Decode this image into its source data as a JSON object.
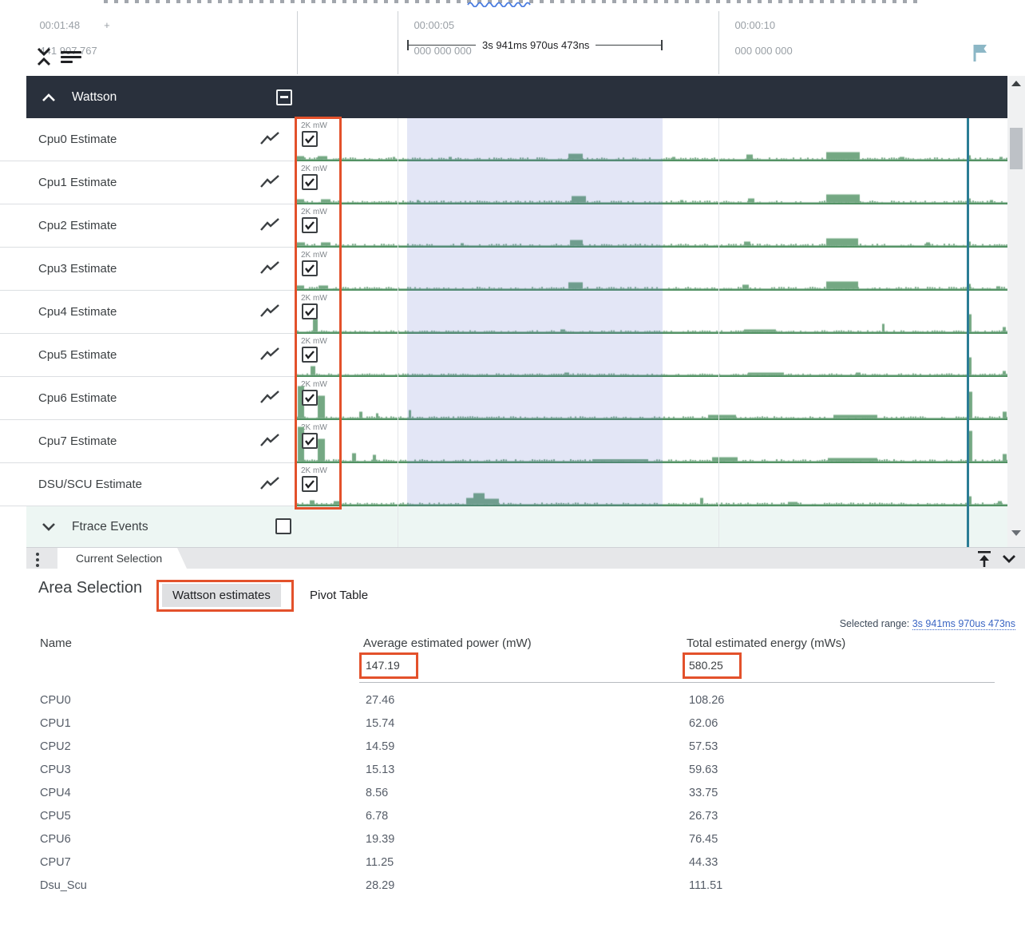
{
  "colors": {
    "annotation_orange": "#e3512b",
    "group_header_dark": "#29303c",
    "wave_fill": "#74a883",
    "wave_line": "#4e8f60",
    "selection_overlay": "#5a69c8",
    "time_marker_teal": "#2b7d95",
    "ftrace_row_bg": "#edf6f3",
    "link_blue": "#3b66c4",
    "squiggle_blue": "#4a7ce0",
    "flag_teal": "#8cb7c6"
  },
  "ruler": {
    "left_time": "00:01:48",
    "left_plus": "+",
    "left_offset": "441 907 767",
    "tick1_time": "00:00:05",
    "tick1_sub": "000 000 000",
    "tick2_time": "00:00:10",
    "tick2_sub": "000 000 000",
    "range_label": "3s 941ms 970us 473ns"
  },
  "wattson_group": {
    "label": "Wattson",
    "checkbox_state": "indeterminate"
  },
  "ftrace_group": {
    "label": "Ftrace Events",
    "checkbox_state": "unchecked"
  },
  "tracks": [
    {
      "name": "Cpu0 Estimate",
      "unit": "2K mW",
      "checked": true,
      "wave": {
        "seed": 11,
        "noise": 1.2,
        "spikes": [
          [
            0,
            9,
            4
          ],
          [
            26,
            12,
            4
          ],
          [
            120,
            3,
            3
          ],
          [
            190,
            4,
            3
          ],
          [
            340,
            18,
            7
          ],
          [
            470,
            4,
            3
          ],
          [
            563,
            8,
            6
          ],
          [
            663,
            42,
            9
          ],
          [
            755,
            6,
            3
          ],
          [
            841,
            3,
            5
          ],
          [
            880,
            4,
            3
          ]
        ]
      }
    },
    {
      "name": "Cpu1 Estimate",
      "unit": "2K mW",
      "checked": true,
      "wave": {
        "seed": 22,
        "noise": 1.2,
        "spikes": [
          [
            0,
            9,
            4
          ],
          [
            30,
            12,
            4
          ],
          [
            150,
            3,
            3
          ],
          [
            344,
            18,
            8
          ],
          [
            480,
            4,
            3
          ],
          [
            565,
            8,
            5
          ],
          [
            663,
            42,
            10
          ],
          [
            841,
            3,
            5
          ],
          [
            868,
            4,
            3
          ]
        ]
      }
    },
    {
      "name": "Cpu2 Estimate",
      "unit": "2K mW",
      "checked": true,
      "wave": {
        "seed": 33,
        "noise": 1.2,
        "spikes": [
          [
            0,
            10,
            4
          ],
          [
            30,
            12,
            4
          ],
          [
            205,
            4,
            3
          ],
          [
            342,
            16,
            7
          ],
          [
            560,
            8,
            5
          ],
          [
            663,
            40,
            9
          ],
          [
            788,
            5,
            4
          ],
          [
            841,
            3,
            5
          ]
        ]
      }
    },
    {
      "name": "Cpu3 Estimate",
      "unit": "2K mW",
      "checked": true,
      "wave": {
        "seed": 44,
        "noise": 1.2,
        "spikes": [
          [
            0,
            9,
            4
          ],
          [
            27,
            12,
            4
          ],
          [
            340,
            18,
            8
          ],
          [
            558,
            8,
            5
          ],
          [
            663,
            40,
            9
          ],
          [
            841,
            3,
            6
          ],
          [
            876,
            5,
            3
          ]
        ]
      }
    },
    {
      "name": "Cpu4 Estimate",
      "unit": "2K mW",
      "checked": true,
      "wave": {
        "seed": 55,
        "noise": 0.9,
        "spikes": [
          [
            20,
            6,
            16
          ],
          [
            330,
            6,
            3
          ],
          [
            560,
            40,
            3
          ],
          [
            733,
            3,
            10
          ],
          [
            841,
            4,
            22
          ],
          [
            884,
            4,
            6
          ]
        ]
      }
    },
    {
      "name": "Cpu5 Estimate",
      "unit": "2K mW",
      "checked": true,
      "wave": {
        "seed": 66,
        "noise": 0.9,
        "spikes": [
          [
            17,
            6,
            11
          ],
          [
            335,
            6,
            3
          ],
          [
            565,
            45,
            3
          ],
          [
            700,
            6,
            3
          ],
          [
            841,
            4,
            22
          ],
          [
            884,
            4,
            5
          ]
        ]
      }
    },
    {
      "name": "Cpu6 Estimate",
      "unit": "2K mW",
      "checked": true,
      "wave": {
        "seed": 77,
        "noise": 1.1,
        "spikes": [
          [
            1,
            8,
            40
          ],
          [
            26,
            9,
            28
          ],
          [
            78,
            4,
            8
          ],
          [
            99,
            3,
            6
          ],
          [
            140,
            3,
            10
          ],
          [
            515,
            35,
            4
          ],
          [
            672,
            55,
            4
          ],
          [
            841,
            5,
            33
          ],
          [
            884,
            5,
            8
          ]
        ]
      }
    },
    {
      "name": "Cpu7 Estimate",
      "unit": "2K mW",
      "checked": true,
      "wave": {
        "seed": 88,
        "noise": 1.3,
        "spikes": [
          [
            1,
            8,
            43
          ],
          [
            26,
            9,
            28
          ],
          [
            69,
            5,
            10
          ],
          [
            95,
            4,
            8
          ],
          [
            370,
            70,
            2.5
          ],
          [
            520,
            32,
            5
          ],
          [
            665,
            62,
            4
          ],
          [
            841,
            5,
            38
          ],
          [
            884,
            5,
            9
          ]
        ]
      }
    },
    {
      "name": "DSU/SCU Estimate",
      "unit": "2K mW",
      "checked": true,
      "wave": {
        "seed": 99,
        "noise": 1.1,
        "spikes": [
          [
            16,
            6,
            5
          ],
          [
            46,
            8,
            4
          ],
          [
            212,
            9,
            8
          ],
          [
            221,
            14,
            14
          ],
          [
            235,
            18,
            7
          ],
          [
            505,
            4,
            8
          ],
          [
            615,
            12,
            3
          ],
          [
            841,
            4,
            10
          ],
          [
            878,
            5,
            4
          ]
        ]
      }
    }
  ],
  "tabbar": {
    "tab_label": "Current Selection"
  },
  "panel": {
    "title": "Area Selection",
    "tab_wattson": "Wattson estimates",
    "tab_pivot": "Pivot Table",
    "selected_range_label": "Selected range:",
    "selected_range_value": "3s 941ms 970us 473ns",
    "table": {
      "col_name": "Name",
      "col_power": "Average estimated power (mW)",
      "col_energy": "Total estimated energy (mWs)",
      "total_power": "147.19",
      "total_energy": "580.25",
      "rows": [
        [
          "CPU0",
          "27.46",
          "108.26"
        ],
        [
          "CPU1",
          "15.74",
          "62.06"
        ],
        [
          "CPU2",
          "14.59",
          "57.53"
        ],
        [
          "CPU3",
          "15.13",
          "59.63"
        ],
        [
          "CPU4",
          "8.56",
          "33.75"
        ],
        [
          "CPU5",
          "6.78",
          "26.73"
        ],
        [
          "CPU6",
          "19.39",
          "76.45"
        ],
        [
          "CPU7",
          "11.25",
          "44.33"
        ],
        [
          "Dsu_Scu",
          "28.29",
          "111.51"
        ]
      ]
    }
  }
}
